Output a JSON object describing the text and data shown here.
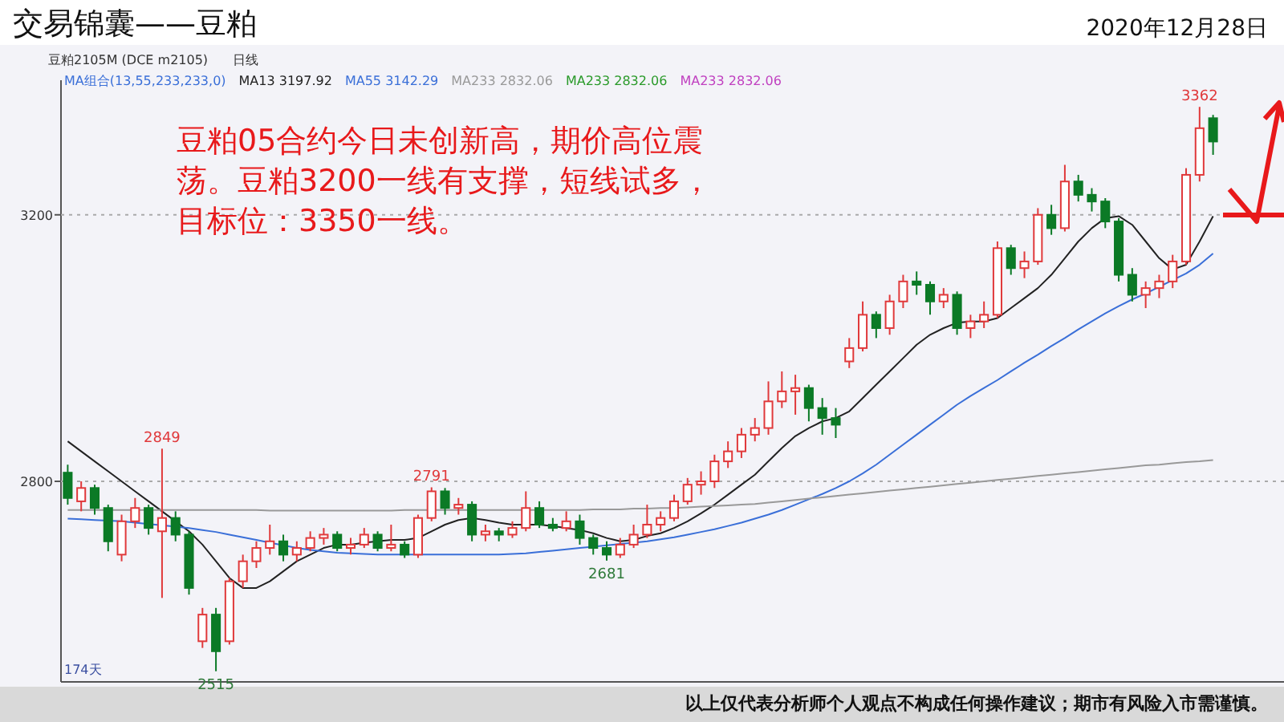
{
  "chart_data": {
    "type": "candlestick",
    "title": "交易锦囊——豆粕",
    "subtitle": "豆粕2105M (DCE m2105)",
    "legend_title": "MA组合(13,55,233,233,0)",
    "annotations": [
      "2020年12月28日",
      "豆粕05合约今日未创新高，期价高位震荡。豆粕3200一线有支撑，短线试多，目标位：3350一线。",
      "日线",
      "174天",
      "以上仅代表分析师个人观点不构成任何操作建议；期市有风险入市需谨慎。",
      "MA233 2832.06",
      "MA233 2832.06",
      {
        "text": "2849",
        "y": 2849
      },
      {
        "text": "2515",
        "y": 2515
      },
      {
        "text": "2791",
        "y": 2791
      },
      {
        "text": "2681",
        "y": 2681
      },
      {
        "text": "3362",
        "y": 3362
      }
    ],
    "categories": [
      null,
      null,
      null,
      null,
      null,
      null,
      null,
      null,
      null,
      null,
      null,
      null,
      null,
      null,
      null,
      null,
      null,
      null,
      null,
      null,
      null,
      null,
      null,
      null,
      null,
      null,
      null,
      null,
      null,
      null,
      null,
      null,
      null,
      null,
      null,
      null,
      null,
      null,
      null,
      null,
      null,
      null,
      null,
      null,
      null,
      null,
      null,
      null,
      null,
      null,
      null,
      null,
      null,
      null,
      null,
      null,
      null,
      null,
      null,
      null,
      null,
      null,
      null,
      null,
      null,
      null,
      null,
      null,
      null,
      null,
      null,
      null,
      null,
      null,
      null,
      null,
      null,
      null,
      null,
      null,
      null,
      null,
      null,
      null,
      null,
      null
    ],
    "ohlc": [
      [
        2813,
        2825,
        2765,
        2775
      ],
      [
        2770,
        2800,
        2755,
        2790
      ],
      [
        2790,
        2795,
        2750,
        2760
      ],
      [
        2760,
        2765,
        2695,
        2710
      ],
      [
        2690,
        2750,
        2680,
        2740
      ],
      [
        2740,
        2775,
        2730,
        2760
      ],
      [
        2760,
        2765,
        2720,
        2730
      ],
      [
        2725,
        2849,
        2625,
        2745
      ],
      [
        2745,
        2755,
        2710,
        2720
      ],
      [
        2720,
        2725,
        2630,
        2640
      ],
      [
        2560,
        2610,
        2550,
        2600
      ],
      [
        2600,
        2610,
        2515,
        2545
      ],
      [
        2560,
        2655,
        2555,
        2650
      ],
      [
        2650,
        2690,
        2640,
        2680
      ],
      [
        2680,
        2710,
        2670,
        2700
      ],
      [
        2700,
        2735,
        2690,
        2710
      ],
      [
        2710,
        2720,
        2680,
        2690
      ],
      [
        2690,
        2710,
        2680,
        2700
      ],
      [
        2700,
        2725,
        2695,
        2715
      ],
      [
        2715,
        2730,
        2705,
        2720
      ],
      [
        2720,
        2725,
        2695,
        2700
      ],
      [
        2700,
        2715,
        2690,
        2705
      ],
      [
        2705,
        2730,
        2700,
        2720
      ],
      [
        2720,
        2725,
        2695,
        2700
      ],
      [
        2700,
        2735,
        2695,
        2705
      ],
      [
        2705,
        2710,
        2685,
        2690
      ],
      [
        2690,
        2750,
        2685,
        2745
      ],
      [
        2745,
        2791,
        2740,
        2785
      ],
      [
        2785,
        2790,
        2750,
        2760
      ],
      [
        2760,
        2775,
        2750,
        2765
      ],
      [
        2765,
        2770,
        2710,
        2720
      ],
      [
        2720,
        2735,
        2710,
        2725
      ],
      [
        2725,
        2730,
        2710,
        2720
      ],
      [
        2720,
        2740,
        2715,
        2730
      ],
      [
        2730,
        2785,
        2725,
        2760
      ],
      [
        2760,
        2770,
        2730,
        2735
      ],
      [
        2735,
        2745,
        2725,
        2730
      ],
      [
        2730,
        2755,
        2725,
        2740
      ],
      [
        2740,
        2750,
        2705,
        2715
      ],
      [
        2715,
        2720,
        2690,
        2700
      ],
      [
        2700,
        2710,
        2681,
        2690
      ],
      [
        2690,
        2715,
        2685,
        2705
      ],
      [
        2705,
        2735,
        2700,
        2720
      ],
      [
        2720,
        2765,
        2715,
        2735
      ],
      [
        2735,
        2755,
        2725,
        2745
      ],
      [
        2745,
        2780,
        2740,
        2770
      ],
      [
        2770,
        2805,
        2765,
        2795
      ],
      [
        2795,
        2815,
        2780,
        2800
      ],
      [
        2800,
        2840,
        2790,
        2830
      ],
      [
        2830,
        2860,
        2820,
        2845
      ],
      [
        2845,
        2880,
        2835,
        2870
      ],
      [
        2870,
        2895,
        2860,
        2880
      ],
      [
        2880,
        2950,
        2870,
        2920
      ],
      [
        2920,
        2965,
        2910,
        2935
      ],
      [
        2935,
        2960,
        2900,
        2940
      ],
      [
        2940,
        2945,
        2890,
        2910
      ],
      [
        2910,
        2925,
        2870,
        2895
      ],
      [
        2895,
        2910,
        2865,
        2885
      ],
      [
        2980,
        3015,
        2970,
        3000
      ],
      [
        3000,
        3070,
        2995,
        3050
      ],
      [
        3050,
        3055,
        3015,
        3030
      ],
      [
        3030,
        3080,
        3020,
        3070
      ],
      [
        3070,
        3110,
        3060,
        3100
      ],
      [
        3100,
        3115,
        3080,
        3095
      ],
      [
        3095,
        3100,
        3050,
        3070
      ],
      [
        3070,
        3090,
        3060,
        3080
      ],
      [
        3080,
        3085,
        3020,
        3030
      ],
      [
        3030,
        3050,
        3015,
        3040
      ],
      [
        3040,
        3070,
        3030,
        3050
      ],
      [
        3050,
        3160,
        3045,
        3150
      ],
      [
        3150,
        3155,
        3110,
        3120
      ],
      [
        3120,
        3145,
        3105,
        3130
      ],
      [
        3130,
        3210,
        3125,
        3200
      ],
      [
        3200,
        3215,
        3170,
        3180
      ],
      [
        3180,
        3275,
        3175,
        3250
      ],
      [
        3250,
        3260,
        3220,
        3230
      ],
      [
        3230,
        3240,
        3205,
        3220
      ],
      [
        3220,
        3225,
        3180,
        3190
      ],
      [
        3190,
        3195,
        3100,
        3110
      ],
      [
        3110,
        3120,
        3070,
        3080
      ],
      [
        3080,
        3100,
        3060,
        3090
      ],
      [
        3090,
        3110,
        3075,
        3100
      ],
      [
        3100,
        3140,
        3090,
        3130
      ],
      [
        3130,
        3270,
        3125,
        3260
      ],
      [
        3260,
        3362,
        3250,
        3330
      ],
      [
        3345,
        3350,
        3290,
        3310
      ]
    ],
    "series": [
      {
        "name": "MA13 3197.92",
        "type": "line",
        "color": "#222222",
        "values": [
          2860,
          2845,
          2830,
          2815,
          2800,
          2785,
          2770,
          2755,
          2740,
          2725,
          2705,
          2680,
          2655,
          2640,
          2640,
          2650,
          2665,
          2680,
          2690,
          2700,
          2705,
          2705,
          2708,
          2710,
          2712,
          2712,
          2715,
          2725,
          2735,
          2742,
          2745,
          2742,
          2738,
          2735,
          2735,
          2735,
          2733,
          2730,
          2727,
          2722,
          2715,
          2710,
          2712,
          2718,
          2722,
          2730,
          2740,
          2752,
          2765,
          2780,
          2795,
          2810,
          2830,
          2850,
          2868,
          2880,
          2890,
          2895,
          2905,
          2925,
          2945,
          2965,
          2985,
          3005,
          3020,
          3030,
          3038,
          3040,
          3040,
          3045,
          3060,
          3075,
          3090,
          3110,
          3135,
          3160,
          3180,
          3195,
          3198,
          3185,
          3160,
          3135,
          3118,
          3125,
          3160,
          3198
        ]
      },
      {
        "name": "MA55 3142.29",
        "type": "line",
        "color": "#3a6fd8",
        "values": [
          2744,
          2743,
          2742,
          2741,
          2740,
          2738,
          2736,
          2734,
          2732,
          2730,
          2727,
          2724,
          2720,
          2716,
          2712,
          2708,
          2704,
          2700,
          2697,
          2695,
          2693,
          2692,
          2691,
          2690,
          2690,
          2690,
          2690,
          2690,
          2690,
          2690,
          2690,
          2690,
          2690,
          2691,
          2692,
          2694,
          2696,
          2698,
          2700,
          2702,
          2704,
          2706,
          2708,
          2710,
          2713,
          2716,
          2720,
          2724,
          2728,
          2733,
          2738,
          2744,
          2750,
          2757,
          2765,
          2773,
          2781,
          2790,
          2800,
          2812,
          2825,
          2840,
          2855,
          2870,
          2885,
          2900,
          2915,
          2928,
          2940,
          2952,
          2965,
          2978,
          2990,
          3003,
          3015,
          3028,
          3040,
          3052,
          3063,
          3073,
          3082,
          3092,
          3102,
          3112,
          3125,
          3142
        ]
      },
      {
        "name": "MA233 2832.06",
        "type": "line",
        "color": "#999999",
        "values": [
          2757,
          2757,
          2757,
          2757,
          2757,
          2757,
          2757,
          2757,
          2757,
          2757,
          2757,
          2757,
          2757,
          2757,
          2757,
          2756,
          2756,
          2756,
          2756,
          2756,
          2756,
          2756,
          2756,
          2756,
          2756,
          2757,
          2757,
          2757,
          2757,
          2757,
          2757,
          2757,
          2757,
          2757,
          2757,
          2757,
          2757,
          2757,
          2757,
          2758,
          2758,
          2758,
          2759,
          2759,
          2760,
          2760,
          2761,
          2762,
          2763,
          2764,
          2765,
          2766,
          2768,
          2770,
          2772,
          2774,
          2776,
          2778,
          2780,
          2782,
          2784,
          2786,
          2788,
          2790,
          2792,
          2794,
          2796,
          2798,
          2800,
          2802,
          2804,
          2806,
          2808,
          2810,
          2812,
          2814,
          2816,
          2818,
          2820,
          2822,
          2824,
          2825,
          2827,
          2829,
          2830,
          2832
        ]
      }
    ],
    "ylim": [
      2499,
      3402
    ],
    "yticks": [
      2800,
      3200
    ],
    "grid": "y",
    "legend": "top left"
  }
}
